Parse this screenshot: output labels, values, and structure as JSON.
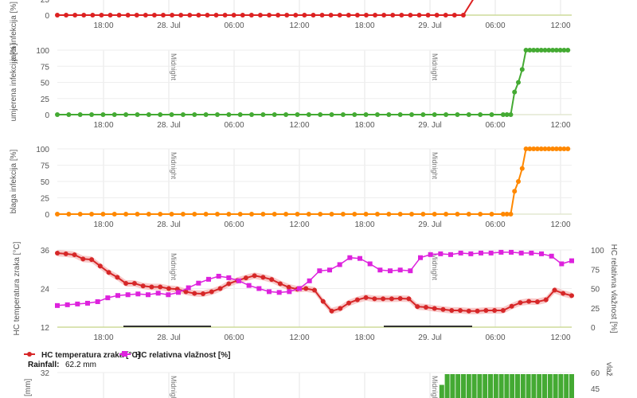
{
  "x_axis": {
    "tick_labels": [
      "18:00",
      "28. Jul",
      "06:00",
      "12:00",
      "18:00",
      "29. Jul",
      "06:00",
      "12:00"
    ],
    "midnight_label": "Midnight"
  },
  "legend": {
    "temperature": "HC temperatura zraka [°C]",
    "humidity": "HC relativna vlažnost [%]"
  },
  "rainfall": {
    "label": "Rainfall:",
    "value": "62.2 mm"
  },
  "colors": {
    "heavy": "#dd2222",
    "moderate": "#44aa33",
    "light": "#ff8800",
    "temperature": "#d62728",
    "humidity": "#dd22dd",
    "rain": "#44aa33",
    "leaf_wet_bar": "#333333"
  },
  "chart_data": [
    {
      "type": "line",
      "ylabel": "jaka infekcija [%]",
      "series": [
        {
          "values": [
            0,
            0,
            0,
            0,
            0,
            0,
            0,
            0,
            0,
            0,
            0,
            0,
            0,
            0,
            0,
            0,
            0,
            0,
            0,
            0,
            0,
            0,
            0,
            0,
            0,
            0,
            0,
            0,
            0,
            0,
            0,
            0,
            0,
            0,
            0,
            0,
            0,
            0,
            0,
            0,
            0,
            0,
            0,
            0,
            0,
            0,
            0,
            0,
            100
          ]
        }
      ],
      "tick_labels": [
        "0",
        "25"
      ]
    },
    {
      "type": "line",
      "ylabel": "umjerena infekcija [%]",
      "ylim": [
        0,
        100
      ],
      "tick_labels": [
        "0",
        "25",
        "50",
        "75",
        "100"
      ],
      "series": [
        {
          "values": [
            0,
            0,
            0,
            0,
            0,
            0,
            0,
            0,
            0,
            0,
            0,
            0,
            0,
            0,
            0,
            0,
            0,
            0,
            0,
            0,
            0,
            0,
            0,
            0,
            0,
            0,
            0,
            0,
            0,
            0,
            0,
            0,
            0,
            0,
            0,
            0,
            0,
            0,
            0,
            0,
            0,
            0,
            0,
            0,
            0,
            0,
            0,
            0,
            0,
            0,
            0,
            0,
            0,
            0,
            0,
            0,
            0,
            0,
            0,
            0,
            0,
            0,
            0,
            0,
            0,
            0,
            0,
            0,
            0,
            0,
            0,
            0,
            0,
            0,
            0,
            0,
            0,
            0,
            0,
            0,
            0,
            0,
            0,
            0,
            0,
            0,
            0,
            0,
            0,
            0,
            0,
            0,
            0,
            0,
            0,
            0,
            0,
            0,
            0,
            0,
            0,
            0,
            0,
            0,
            0,
            0,
            0,
            0,
            0,
            0,
            0,
            0,
            0,
            0,
            0,
            0,
            0,
            0,
            0,
            0,
            35,
            50,
            70,
            100,
            100,
            100,
            100,
            100,
            100,
            100,
            100,
            100,
            100,
            100,
            100
          ]
        }
      ]
    },
    {
      "type": "line",
      "ylabel": "blaga infekcija [%]",
      "ylim": [
        0,
        100
      ],
      "tick_labels": [
        "0",
        "25",
        "50",
        "75",
        "100"
      ],
      "series": [
        {
          "values": [
            0,
            0,
            0,
            0,
            0,
            0,
            0,
            0,
            0,
            0,
            0,
            0,
            0,
            0,
            0,
            0,
            0,
            0,
            0,
            0,
            0,
            0,
            0,
            0,
            0,
            0,
            0,
            0,
            0,
            0,
            0,
            0,
            0,
            0,
            0,
            0,
            0,
            0,
            0,
            0,
            0,
            0,
            0,
            0,
            0,
            0,
            0,
            0,
            0,
            0,
            0,
            0,
            0,
            0,
            0,
            0,
            0,
            0,
            0,
            0,
            0,
            0,
            0,
            0,
            0,
            0,
            0,
            0,
            0,
            0,
            0,
            0,
            0,
            0,
            0,
            0,
            0,
            0,
            0,
            0,
            0,
            0,
            0,
            0,
            0,
            0,
            0,
            0,
            0,
            0,
            0,
            0,
            0,
            0,
            0,
            0,
            0,
            0,
            0,
            0,
            0,
            0,
            0,
            0,
            0,
            0,
            0,
            0,
            0,
            0,
            0,
            0,
            0,
            0,
            0,
            0,
            0,
            0,
            0,
            0,
            35,
            50,
            70,
            100,
            100,
            100,
            100,
            100,
            100,
            100,
            100,
            100,
            100,
            100,
            100
          ]
        }
      ]
    },
    {
      "type": "line",
      "ylabel": "HC temperatura zraka [°C]",
      "y2label": "HC relativna vlažnost [%]",
      "ylim": [
        12,
        36
      ],
      "y2lim": [
        0,
        100
      ],
      "tick_labels": [
        "12",
        "24",
        "36"
      ],
      "tick_labels_right": [
        "0",
        "25",
        "50",
        "75",
        "100"
      ],
      "series": [
        {
          "name": "HC temperatura zraka [°C]",
          "values": [
            35,
            34.8,
            34.5,
            33.2,
            33,
            31,
            29,
            27.5,
            25.6,
            25.6,
            24.8,
            24.5,
            24.5,
            24,
            23.8,
            23,
            22.5,
            22.4,
            23,
            24,
            25.5,
            26.5,
            27.3,
            28,
            27.5,
            26.8,
            25.5,
            24.4,
            23.8,
            24,
            23.5,
            20,
            17,
            17.8,
            19.5,
            20.5,
            21.2,
            20.8,
            20.8,
            20.8,
            20.9,
            20.8,
            18.4,
            18.2,
            17.8,
            17.5,
            17.2,
            17.2,
            17,
            17,
            17.2,
            17.2,
            17.2,
            18.5,
            19.6,
            20,
            19.9,
            20.5,
            23.5,
            22.5,
            21.8
          ]
        },
        {
          "name": "HC relativna vlažnost [%]",
          "values": [
            28,
            29,
            30,
            31,
            33,
            38,
            41,
            42,
            43,
            42,
            44,
            42,
            45,
            51,
            57,
            62,
            66,
            64,
            60,
            54,
            50,
            46,
            45,
            46,
            50,
            60,
            73,
            74,
            81,
            90,
            89,
            82,
            74,
            73,
            74,
            73,
            90,
            94,
            95,
            94,
            96,
            95,
            96,
            96,
            97,
            97,
            96,
            96,
            95,
            92,
            82,
            86
          ]
        }
      ]
    },
    {
      "type": "bar",
      "ylabel": "[mm]",
      "y2label": "vlaž",
      "tick_labels": [
        "32"
      ],
      "tick_labels_right": [
        "60",
        "45"
      ],
      "values": [
        0,
        0,
        0,
        0,
        0,
        0,
        0,
        0,
        0,
        0,
        0,
        0,
        0,
        0,
        0,
        0,
        0,
        0,
        0,
        0,
        0,
        0,
        0,
        0,
        0,
        0,
        0,
        0,
        0,
        0,
        0,
        0,
        0,
        0,
        0,
        0,
        0,
        0,
        0,
        0,
        0,
        0,
        0,
        0,
        0,
        0,
        0,
        0,
        0,
        0,
        0,
        0,
        0,
        0,
        0,
        0,
        0,
        0,
        0,
        0,
        0,
        0,
        0,
        0,
        0,
        0,
        0,
        0,
        0,
        0,
        0,
        1.4,
        3.2,
        3.2,
        3.2,
        3.2,
        3.2,
        3.2,
        3.2,
        3.2,
        3.2,
        3.2,
        3.2,
        3.2,
        3.2,
        3.2,
        3.2,
        3.2,
        3.2,
        3.2,
        3.2,
        3.2,
        3.2,
        3.2,
        3.2,
        3.2
      ]
    }
  ]
}
